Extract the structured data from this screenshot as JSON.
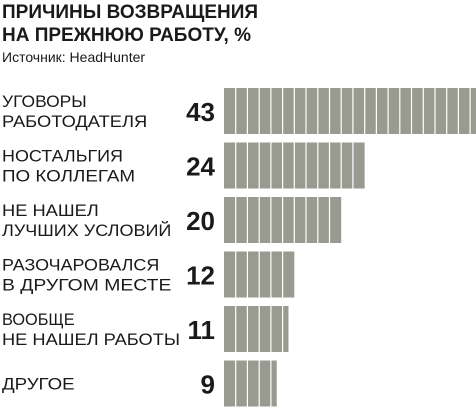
{
  "chart_data": {
    "type": "bar",
    "title_lines": [
      "ПРИЧИНЫ  ВОЗВРАЩЕНИЯ",
      "НА ПРЕЖНЮЮ РАБОТУ, %"
    ],
    "subtitle": "Источник: HeadHunter",
    "categories": [
      [
        "УГОВОРЫ",
        "РАБОТОДАТЕЛЯ"
      ],
      [
        "НОСТАЛЬГИЯ",
        "ПО КОЛЛЕГАМ"
      ],
      [
        "НЕ НАШЕЛ",
        "ЛУЧШИХ УСЛОВИЙ"
      ],
      [
        "РАЗОЧАРОВАЛСЯ",
        "В ДРУГОМ МЕСТЕ"
      ],
      [
        "ВООБЩЕ",
        "НЕ НАШЕЛ РАБОТЫ"
      ],
      [
        "ДРУГОЕ"
      ]
    ],
    "values": [
      43,
      24,
      20,
      12,
      11,
      9
    ],
    "bar_color": "#9a9b90",
    "segment_line_color": "#ffffff",
    "grid": false,
    "legend": "none"
  }
}
